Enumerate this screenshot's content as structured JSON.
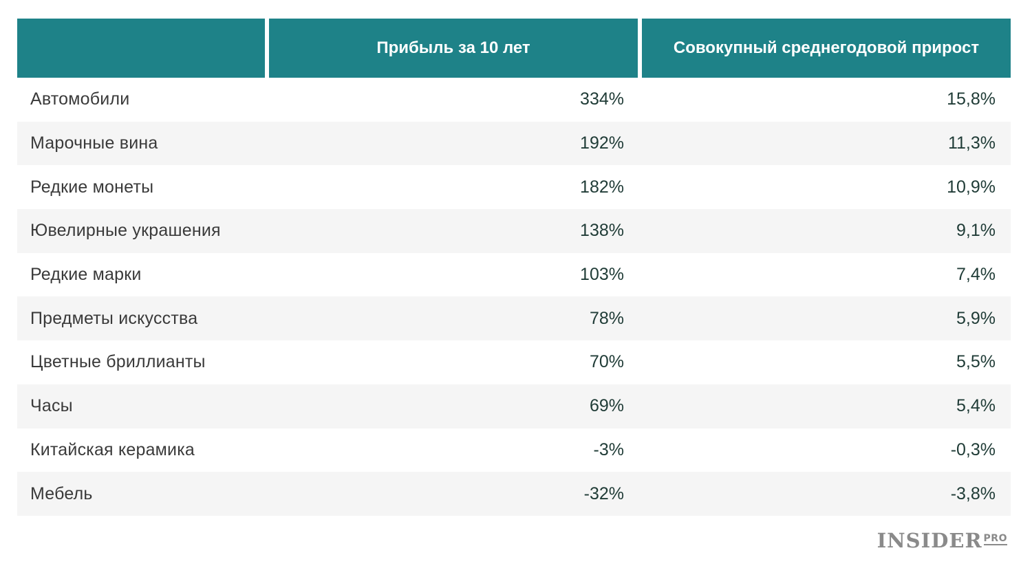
{
  "chart_data": {
    "type": "table",
    "columns": [
      "",
      "Прибыль за 10 лет",
      "Совокупный среднегодовой прирост"
    ],
    "rows": [
      {
        "name": "Автомобили",
        "profit": "334%",
        "cagr": "15,8%"
      },
      {
        "name": "Марочные вина",
        "profit": "192%",
        "cagr": "11,3%"
      },
      {
        "name": "Редкие монеты",
        "profit": "182%",
        "cagr": "10,9%"
      },
      {
        "name": "Ювелирные украшения",
        "profit": "138%",
        "cagr": "9,1%"
      },
      {
        "name": "Редкие марки",
        "profit": "103%",
        "cagr": "7,4%"
      },
      {
        "name": "Предметы искусства",
        "profit": "78%",
        "cagr": "5,9%"
      },
      {
        "name": "Цветные бриллианты",
        "profit": "70%",
        "cagr": "5,5%"
      },
      {
        "name": "Часы",
        "profit": "69%",
        "cagr": "5,4%"
      },
      {
        "name": "Китайская керамика",
        "profit": "-3%",
        "cagr": "-0,3%"
      },
      {
        "name": "Мебель",
        "profit": "-32%",
        "cagr": "-3,8%"
      }
    ],
    "profit_values": [
      334,
      192,
      182,
      138,
      103,
      78,
      70,
      69,
      -3,
      -32
    ],
    "cagr_values": [
      15.8,
      11.3,
      10.9,
      9.1,
      7.4,
      5.9,
      5.5,
      5.4,
      -0.3,
      -3.8
    ]
  },
  "colors": {
    "header_bg": "#1e8288",
    "header_text": "#ffffff",
    "stripe": "#f5f5f5",
    "logo": "#8a8a8a"
  },
  "logo": {
    "main": "INSIDER",
    "pro": "PRO"
  }
}
